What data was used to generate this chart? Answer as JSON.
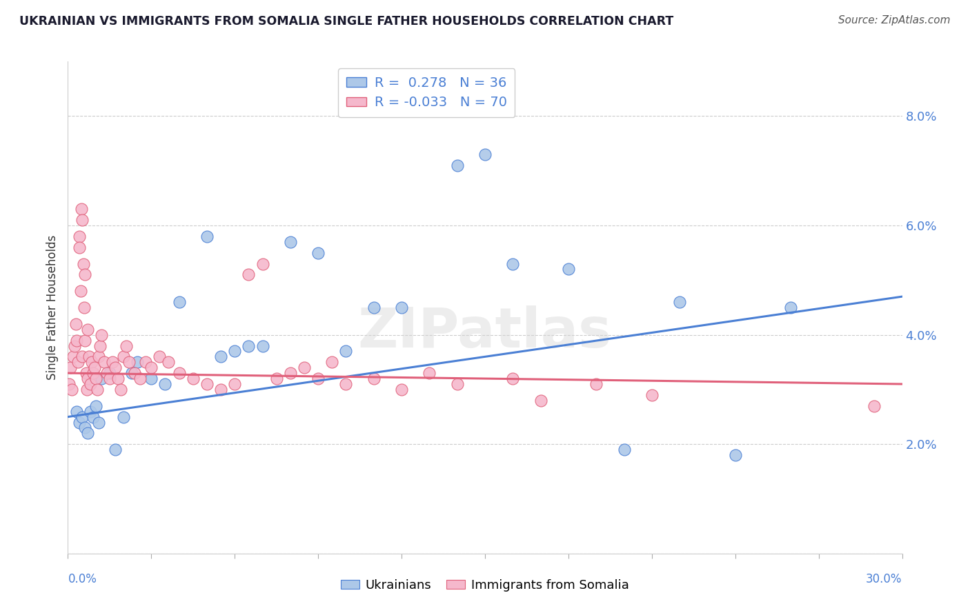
{
  "title": "UKRAINIAN VS IMMIGRANTS FROM SOMALIA SINGLE FATHER HOUSEHOLDS CORRELATION CHART",
  "source": "Source: ZipAtlas.com",
  "ylabel": "Single Father Households",
  "xlim": [
    0.0,
    30.0
  ],
  "ylim": [
    0.0,
    9.0
  ],
  "background_color": "#ffffff",
  "grid_color": "#cccccc",
  "ukrainian_color": "#adc8e8",
  "somalia_color": "#f5b8cc",
  "ukrainian_line_color": "#4a7fd4",
  "somalia_line_color": "#e0607a",
  "R_ukrainian": 0.278,
  "N_ukrainian": 36,
  "R_somalia": -0.033,
  "N_somalia": 70,
  "ukrainian_points": [
    [
      0.3,
      2.6
    ],
    [
      0.4,
      2.4
    ],
    [
      0.5,
      2.5
    ],
    [
      0.6,
      2.3
    ],
    [
      0.7,
      2.2
    ],
    [
      0.8,
      2.6
    ],
    [
      0.9,
      2.5
    ],
    [
      1.0,
      2.7
    ],
    [
      1.1,
      2.4
    ],
    [
      1.2,
      3.2
    ],
    [
      1.5,
      3.3
    ],
    [
      1.7,
      1.9
    ],
    [
      2.0,
      2.5
    ],
    [
      2.3,
      3.3
    ],
    [
      2.5,
      3.5
    ],
    [
      3.0,
      3.2
    ],
    [
      3.5,
      3.1
    ],
    [
      4.0,
      4.6
    ],
    [
      5.0,
      5.8
    ],
    [
      5.5,
      3.6
    ],
    [
      6.0,
      3.7
    ],
    [
      6.5,
      3.8
    ],
    [
      7.0,
      3.8
    ],
    [
      8.0,
      5.7
    ],
    [
      9.0,
      5.5
    ],
    [
      10.0,
      3.7
    ],
    [
      11.0,
      4.5
    ],
    [
      12.0,
      4.5
    ],
    [
      14.0,
      7.1
    ],
    [
      15.0,
      7.3
    ],
    [
      16.0,
      5.3
    ],
    [
      18.0,
      5.2
    ],
    [
      20.0,
      1.9
    ],
    [
      22.0,
      4.6
    ],
    [
      24.0,
      1.8
    ],
    [
      26.0,
      4.5
    ]
  ],
  "somalia_points": [
    [
      0.05,
      3.1
    ],
    [
      0.1,
      3.4
    ],
    [
      0.15,
      3.0
    ],
    [
      0.2,
      3.6
    ],
    [
      0.25,
      3.8
    ],
    [
      0.28,
      4.2
    ],
    [
      0.3,
      3.9
    ],
    [
      0.35,
      3.5
    ],
    [
      0.4,
      5.8
    ],
    [
      0.42,
      5.6
    ],
    [
      0.45,
      4.8
    ],
    [
      0.48,
      6.3
    ],
    [
      0.5,
      6.1
    ],
    [
      0.52,
      3.6
    ],
    [
      0.55,
      5.3
    ],
    [
      0.58,
      4.5
    ],
    [
      0.6,
      3.9
    ],
    [
      0.62,
      5.1
    ],
    [
      0.65,
      3.3
    ],
    [
      0.68,
      3.0
    ],
    [
      0.7,
      3.2
    ],
    [
      0.72,
      4.1
    ],
    [
      0.75,
      3.6
    ],
    [
      0.8,
      3.1
    ],
    [
      0.85,
      3.5
    ],
    [
      0.9,
      3.3
    ],
    [
      0.95,
      3.4
    ],
    [
      1.0,
      3.2
    ],
    [
      1.05,
      3.0
    ],
    [
      1.1,
      3.6
    ],
    [
      1.15,
      3.8
    ],
    [
      1.2,
      4.0
    ],
    [
      1.3,
      3.5
    ],
    [
      1.4,
      3.3
    ],
    [
      1.5,
      3.2
    ],
    [
      1.6,
      3.5
    ],
    [
      1.7,
      3.4
    ],
    [
      1.8,
      3.2
    ],
    [
      1.9,
      3.0
    ],
    [
      2.0,
      3.6
    ],
    [
      2.1,
      3.8
    ],
    [
      2.2,
      3.5
    ],
    [
      2.4,
      3.3
    ],
    [
      2.6,
      3.2
    ],
    [
      2.8,
      3.5
    ],
    [
      3.0,
      3.4
    ],
    [
      3.3,
      3.6
    ],
    [
      3.6,
      3.5
    ],
    [
      4.0,
      3.3
    ],
    [
      4.5,
      3.2
    ],
    [
      5.0,
      3.1
    ],
    [
      5.5,
      3.0
    ],
    [
      6.0,
      3.1
    ],
    [
      6.5,
      5.1
    ],
    [
      7.0,
      5.3
    ],
    [
      7.5,
      3.2
    ],
    [
      8.0,
      3.3
    ],
    [
      8.5,
      3.4
    ],
    [
      9.0,
      3.2
    ],
    [
      9.5,
      3.5
    ],
    [
      10.0,
      3.1
    ],
    [
      11.0,
      3.2
    ],
    [
      12.0,
      3.0
    ],
    [
      13.0,
      3.3
    ],
    [
      14.0,
      3.1
    ],
    [
      16.0,
      3.2
    ],
    [
      17.0,
      2.8
    ],
    [
      19.0,
      3.1
    ],
    [
      21.0,
      2.9
    ],
    [
      29.0,
      2.7
    ]
  ]
}
